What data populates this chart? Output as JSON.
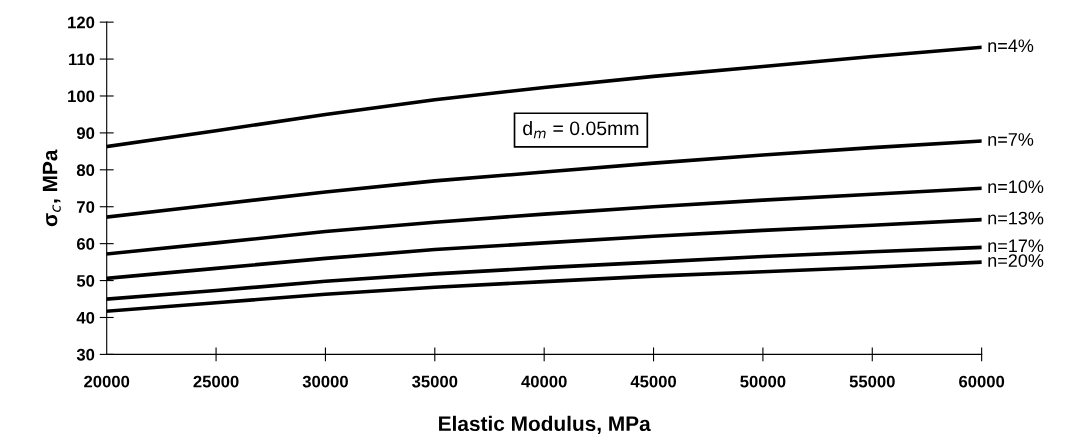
{
  "chart_data": {
    "type": "line",
    "xlabel": "Elastic Modulus, MPa",
    "ylabel": "σ$_{c}$, MPa",
    "x": [
      20000,
      25000,
      30000,
      35000,
      40000,
      45000,
      50000,
      55000,
      60000
    ],
    "series": [
      {
        "name": "n=4%",
        "color": "#000000",
        "values": [
          86.3,
          90.6,
          95,
          99,
          102.3,
          105.3,
          108,
          110.7,
          113.2
        ]
      },
      {
        "name": "n=7%",
        "color": "#000000",
        "values": [
          67.2,
          70.6,
          74,
          77,
          79.4,
          81.8,
          84,
          86,
          87.8
        ]
      },
      {
        "name": "n=10%",
        "color": "#000000",
        "values": [
          57.2,
          60.2,
          63.3,
          65.8,
          68,
          70,
          71.8,
          73.4,
          75
        ]
      },
      {
        "name": "n=13%",
        "color": "#000000",
        "values": [
          50.6,
          53.3,
          56,
          58.4,
          60.2,
          62,
          63.6,
          65,
          66.5
        ]
      },
      {
        "name": "n=17%",
        "color": "#000000",
        "values": [
          45,
          47.3,
          49.8,
          51.8,
          53.5,
          55,
          56.5,
          57.8,
          59
        ]
      },
      {
        "name": "n=20%",
        "color": "#000000",
        "values": [
          41.7,
          44,
          46.3,
          48.2,
          49.7,
          51.2,
          52.4,
          53.6,
          55
        ]
      }
    ],
    "xlim": [
      20000,
      60000
    ],
    "xticks": [
      20000,
      25000,
      30000,
      35000,
      40000,
      45000,
      50000,
      55000,
      60000
    ],
    "ylim": [
      30,
      120
    ],
    "yticks": [
      30,
      40,
      50,
      60,
      70,
      80,
      90,
      100,
      110,
      120
    ],
    "grid": false,
    "legend": false,
    "marker": "none",
    "line_style": "solid",
    "annotations": [
      "d$_{m}$ = 0.05mm"
    ]
  }
}
